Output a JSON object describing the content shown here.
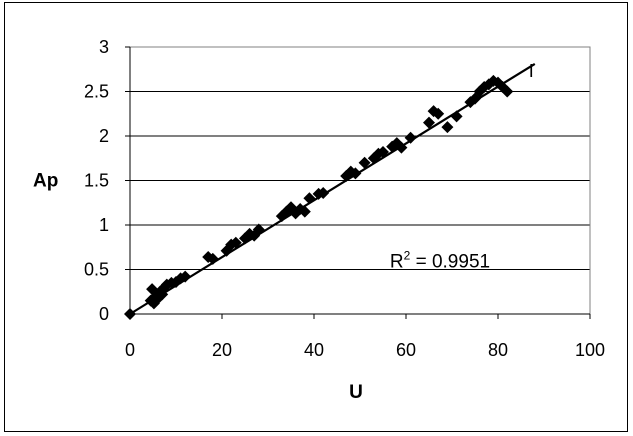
{
  "chart_data": {
    "type": "scatter",
    "title": "",
    "xlabel": "U",
    "ylabel": "Ap",
    "xlim": [
      0,
      100
    ],
    "ylim": [
      0,
      3
    ],
    "x_ticks": [
      "0",
      "20",
      "40",
      "60",
      "80",
      "100"
    ],
    "y_ticks": [
      "0",
      "0.5",
      "1",
      "1.5",
      "2",
      "2.5",
      "3"
    ],
    "grid": "horizontal",
    "marker": "diamond",
    "marker_color": "#000000",
    "annotation": {
      "prefix": "R",
      "sup": "2",
      "text": " = 0.9951"
    },
    "end_marker_text": "I",
    "trendline": {
      "x": [
        0,
        88
      ],
      "y": [
        0,
        2.81
      ]
    },
    "series": [
      {
        "points": [
          [
            0,
            0
          ],
          [
            4.5,
            0.15
          ],
          [
            4.8,
            0.28
          ],
          [
            5.2,
            0.12
          ],
          [
            5.6,
            0.2
          ],
          [
            6,
            0.17
          ],
          [
            6.5,
            0.25
          ],
          [
            7,
            0.22
          ],
          [
            7.5,
            0.3
          ],
          [
            8,
            0.33
          ],
          [
            9,
            0.35
          ],
          [
            10,
            0.36
          ],
          [
            11,
            0.4
          ],
          [
            12,
            0.42
          ],
          [
            17,
            0.64
          ],
          [
            18,
            0.62
          ],
          [
            21,
            0.71
          ],
          [
            22,
            0.78
          ],
          [
            23,
            0.8
          ],
          [
            25,
            0.85
          ],
          [
            26,
            0.9
          ],
          [
            27,
            0.88
          ],
          [
            28,
            0.95
          ],
          [
            33,
            1.1
          ],
          [
            34,
            1.15
          ],
          [
            35,
            1.2
          ],
          [
            36,
            1.13
          ],
          [
            37,
            1.18
          ],
          [
            38,
            1.15
          ],
          [
            39,
            1.3
          ],
          [
            41,
            1.35
          ],
          [
            42,
            1.36
          ],
          [
            47,
            1.55
          ],
          [
            48,
            1.6
          ],
          [
            49,
            1.58
          ],
          [
            51,
            1.7
          ],
          [
            53,
            1.75
          ],
          [
            54,
            1.8
          ],
          [
            55,
            1.82
          ],
          [
            57,
            1.88
          ],
          [
            58,
            1.92
          ],
          [
            59,
            1.87
          ],
          [
            61,
            1.98
          ],
          [
            65,
            2.15
          ],
          [
            66,
            2.28
          ],
          [
            67,
            2.25
          ],
          [
            69,
            2.1
          ],
          [
            71,
            2.22
          ],
          [
            74,
            2.38
          ],
          [
            75,
            2.42
          ],
          [
            76,
            2.5
          ],
          [
            77,
            2.55
          ],
          [
            78,
            2.58
          ],
          [
            79,
            2.62
          ],
          [
            80,
            2.6
          ],
          [
            81,
            2.55
          ],
          [
            82,
            2.5
          ]
        ]
      }
    ]
  }
}
